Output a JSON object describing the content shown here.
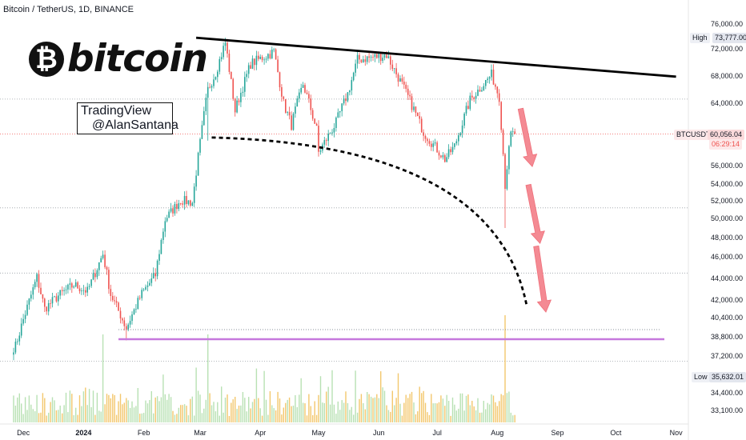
{
  "header": {
    "symbol_title": "Bitcoin / TetherUS, 1D, BINANCE"
  },
  "watermark": {
    "coin_glyph": "₿",
    "word": "bitcoin"
  },
  "author_box": {
    "line1": "TradingView",
    "line2": "@AlanSantana"
  },
  "price_tags": {
    "high_label": "High",
    "high_value": "73,777.00",
    "symbol": "BTCUSDT",
    "last_price": "60,056.04",
    "countdown": "06:29:14",
    "low_label": "Low",
    "low_value": "35,632.01"
  },
  "colors": {
    "up": "#26a69a",
    "down": "#ef5350",
    "gold": "#f0b949",
    "purple": "#c678dd",
    "trendline": "#000000",
    "arrow": "#f48a93"
  },
  "chart_data": {
    "type": "candlestick",
    "title": "Bitcoin / TetherUS, 1D, BINANCE",
    "y_ticks": [
      "76,000.00",
      "72,000.00",
      "68,000.00",
      "64,000.00",
      "60,000.00",
      "56,000.00",
      "54,000.00",
      "52,000.00",
      "50,000.00",
      "48,000.00",
      "46,000.00",
      "44,000.00",
      "42,000.00",
      "40,400.00",
      "38,800.00",
      "37,200.00",
      "34,400.00",
      "33,100.00"
    ],
    "x_ticks": [
      "Dec",
      "2024",
      "Feb",
      "Mar",
      "Apr",
      "May",
      "Jun",
      "Jul",
      "Aug",
      "Sep",
      "Oct",
      "Nov"
    ],
    "close_path": [
      [
        "2023-11-26",
        37500
      ],
      [
        "2023-12-04",
        41900
      ],
      [
        "2023-12-08",
        44100
      ],
      [
        "2023-12-12",
        41200
      ],
      [
        "2023-12-19",
        42400
      ],
      [
        "2023-12-27",
        43400
      ],
      [
        "2024-01-03",
        42800
      ],
      [
        "2024-01-11",
        46300
      ],
      [
        "2024-01-15",
        42500
      ],
      [
        "2024-01-23",
        39500
      ],
      [
        "2024-01-31",
        42600
      ],
      [
        "2024-02-07",
        44300
      ],
      [
        "2024-02-12",
        49900
      ],
      [
        "2024-02-20",
        52100
      ],
      [
        "2024-02-26",
        51800
      ],
      [
        "2024-03-05",
        66000
      ],
      [
        "2024-03-09",
        68500
      ],
      [
        "2024-03-14",
        73000
      ],
      [
        "2024-03-19",
        63000
      ],
      [
        "2024-03-27",
        69800
      ],
      [
        "2024-04-08",
        71600
      ],
      [
        "2024-04-13",
        64000
      ],
      [
        "2024-04-17",
        61200
      ],
      [
        "2024-04-23",
        66800
      ],
      [
        "2024-04-30",
        60600
      ],
      [
        "2024-05-01",
        57700
      ],
      [
        "2024-05-10",
        61500
      ],
      [
        "2024-05-16",
        65400
      ],
      [
        "2024-05-21",
        70400
      ],
      [
        "2024-06-05",
        71100
      ],
      [
        "2024-06-13",
        66700
      ],
      [
        "2024-06-24",
        60300
      ],
      [
        "2024-07-05",
        56800
      ],
      [
        "2024-07-10",
        58500
      ],
      [
        "2024-07-18",
        64500
      ],
      [
        "2024-07-29",
        68200
      ],
      [
        "2024-08-02",
        64900
      ],
      [
        "2024-08-05",
        53900
      ],
      [
        "2024-08-08",
        60000
      ],
      [
        "2024-08-10",
        60056
      ]
    ],
    "volume_spike_dates": [
      "2024-01-11",
      "2024-03-05",
      "2024-08-05"
    ],
    "annotations": {
      "descending_resistance": [
        [
          "2024-02-28",
          73777
        ],
        [
          "2024-11-01",
          67900
        ]
      ],
      "curved_support_dashed": "arc from early March near 59,500 bending down to mid-August near 41,500",
      "support_line_purple": 38600,
      "support_line_grey_dotted": 39400,
      "dotted_levels": [
        64600,
        51200,
        44500,
        36800
      ],
      "projection_arrows": 3
    }
  }
}
